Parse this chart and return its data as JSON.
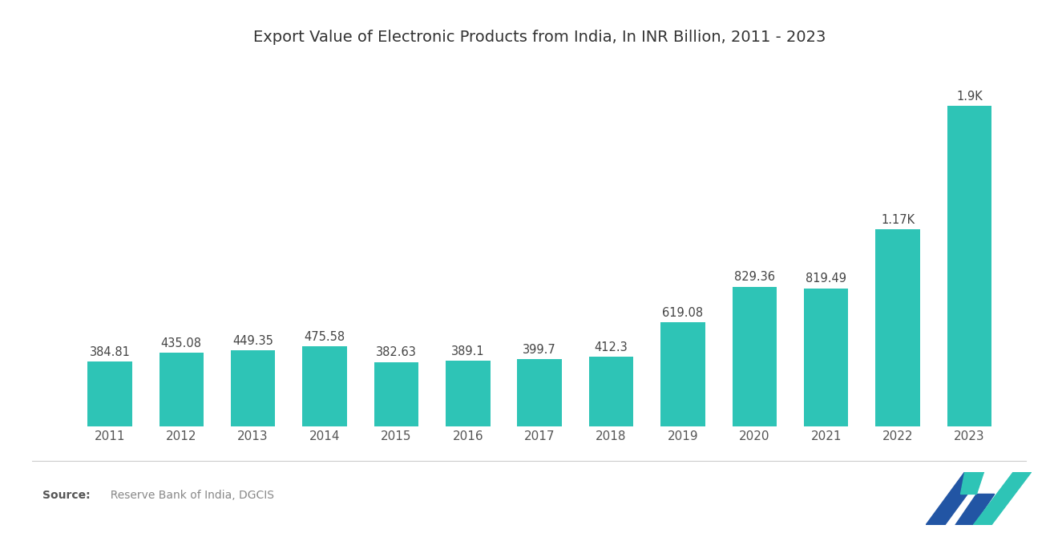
{
  "title": "Export Value of Electronic Products from India, In INR Billion, 2011 - 2023",
  "years": [
    2011,
    2012,
    2013,
    2014,
    2015,
    2016,
    2017,
    2018,
    2019,
    2020,
    2021,
    2022,
    2023
  ],
  "values": [
    384.81,
    435.08,
    449.35,
    475.58,
    382.63,
    389.1,
    399.7,
    412.3,
    619.08,
    829.36,
    819.49,
    1170,
    1900
  ],
  "labels": [
    "384.81",
    "435.08",
    "449.35",
    "475.58",
    "382.63",
    "389.1",
    "399.7",
    "412.3",
    "619.08",
    "829.36",
    "819.49",
    "1.17K",
    "1.9K"
  ],
  "bar_color": "#2EC4B6",
  "background_color": "#ffffff",
  "title_fontsize": 14,
  "label_fontsize": 10.5,
  "tick_fontsize": 11,
  "ylim": [
    0,
    2150
  ],
  "logo_dark_color": "#2255a4",
  "logo_teal_color": "#2EC4B6",
  "source_label_color": "#555555",
  "source_text_color": "#888888",
  "tick_color": "#555555"
}
